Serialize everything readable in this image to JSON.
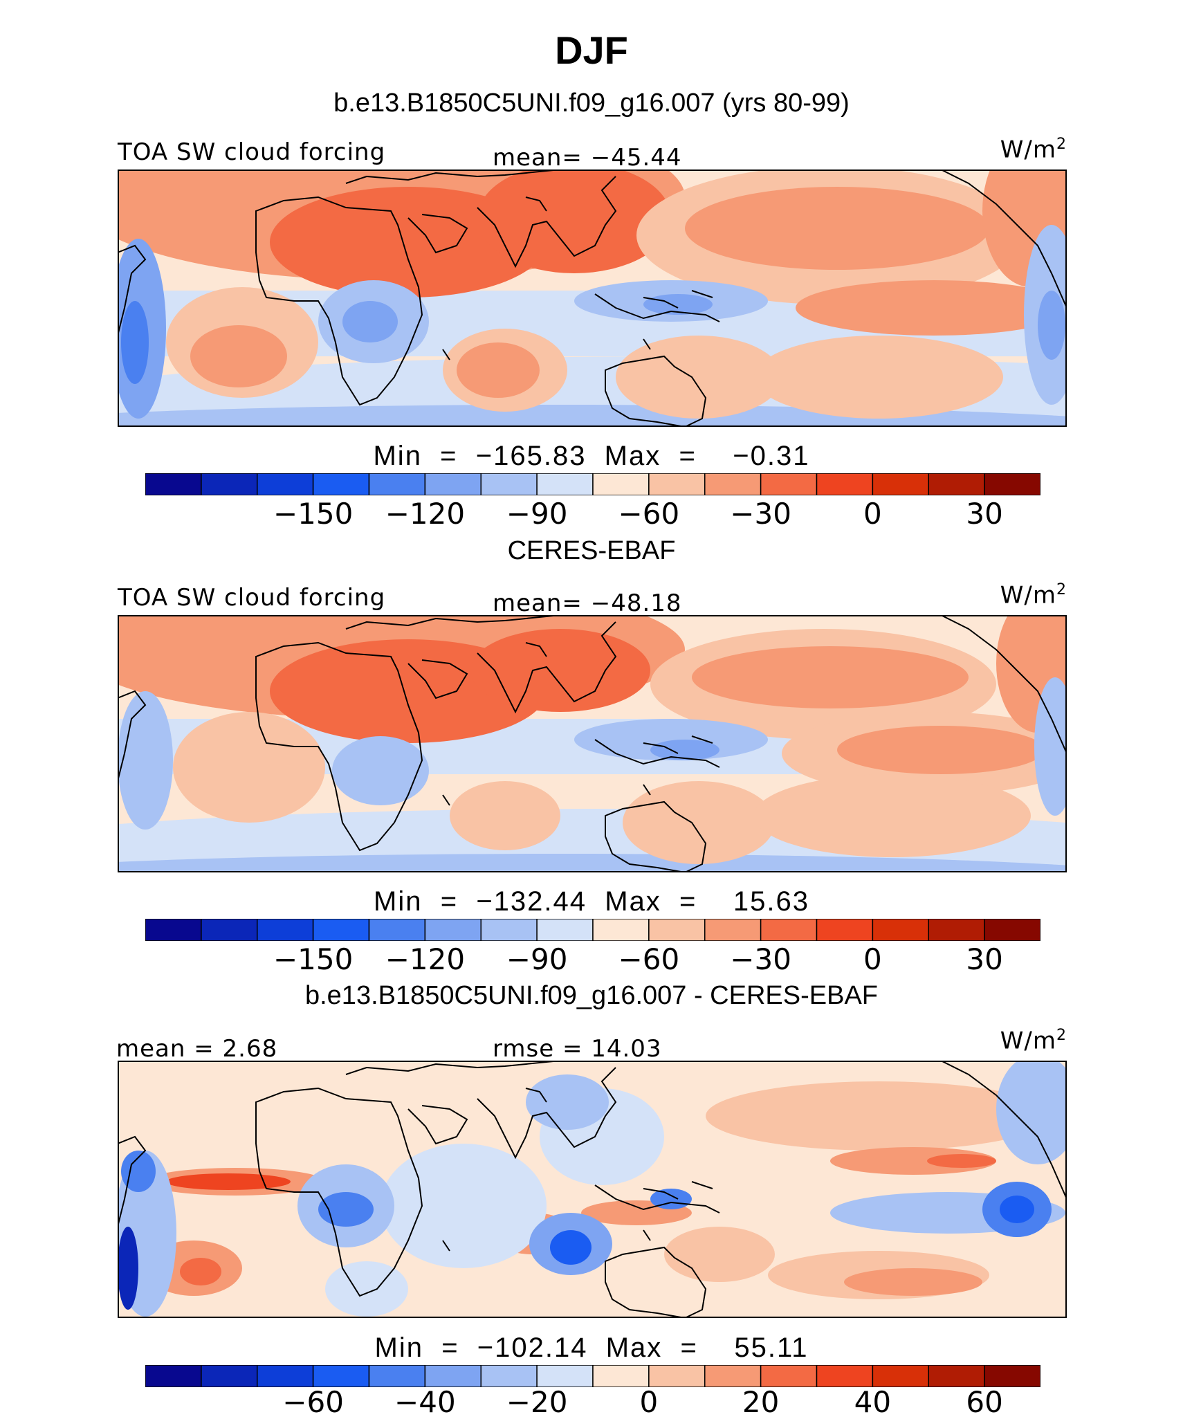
{
  "title": "DJF",
  "colormap": [
    "#08088f",
    "#0b26b8",
    "#0d3ed8",
    "#1a5cf2",
    "#4a80f0",
    "#7ea4f2",
    "#a8c2f4",
    "#d4e2f8",
    "#fde7d5",
    "#f9c3a5",
    "#f69a75",
    "#f36a44",
    "#ee4420",
    "#d83008",
    "#b01c04",
    "#860800"
  ],
  "panels": [
    {
      "name": "model",
      "title": "b.e13.B1850C5UNI.f09_g16.007 (yrs 80-99)",
      "left_label": "TOA SW cloud forcing",
      "center_label": "mean= −45.44",
      "units": "W/m",
      "units_sup": "2",
      "stats": "Min  =  −165.83  Max  =    −0.31",
      "ticks": [
        "−150",
        "−120",
        "−90",
        "−60",
        "−30",
        "0",
        "30"
      ]
    },
    {
      "name": "obs",
      "title": "CERES-EBAF",
      "left_label": "TOA SW cloud forcing",
      "center_label": "mean= −48.18",
      "units": "W/m",
      "units_sup": "2",
      "stats": "Min  =  −132.44  Max  =    15.63",
      "ticks": [
        "−150",
        "−120",
        "−90",
        "−60",
        "−30",
        "0",
        "30"
      ]
    },
    {
      "name": "diff",
      "title": "b.e13.B1850C5UNI.f09_g16.007 - CERES-EBAF",
      "left_label": "mean =    2.68",
      "center_label": "rmse  =   14.03",
      "units": "W/m",
      "units_sup": "2",
      "stats": "Min  =  −102.14  Max  =    55.11",
      "ticks": [
        "−60",
        "−40",
        "−20",
        "0",
        "20",
        "40",
        "60"
      ]
    }
  ]
}
